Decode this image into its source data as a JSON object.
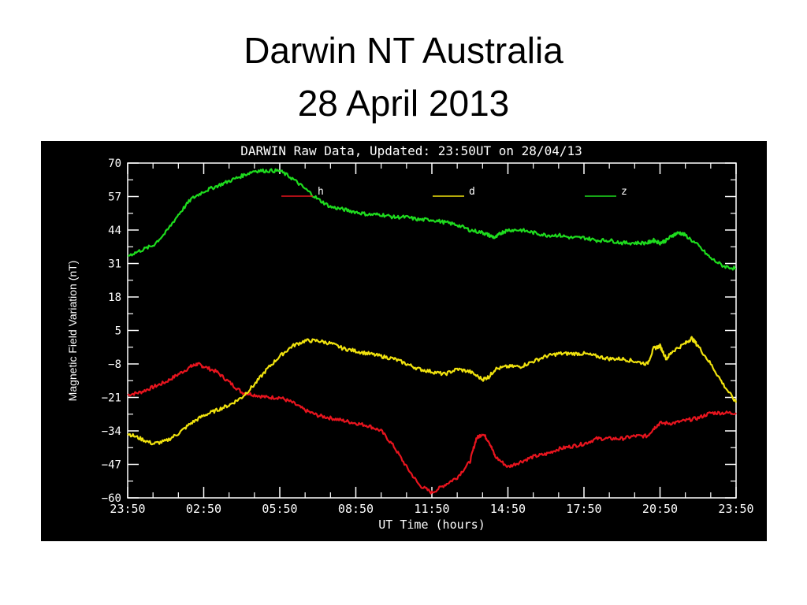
{
  "slide": {
    "title_line1": "Darwin NT Australia",
    "title_line2": "28 April 2013"
  },
  "chart_data": {
    "type": "line",
    "title": "DARWIN Raw Data, Updated: 23:50UT on 28/04/13",
    "xlabel": "UT Time (hours)",
    "ylabel": "Magnetic Field Variation (nT)",
    "x_ticks": [
      "23:50",
      "02:50",
      "05:50",
      "08:50",
      "11:50",
      "14:50",
      "17:50",
      "20:50",
      "23:50"
    ],
    "y_ticks": [
      70,
      57,
      44,
      31,
      18,
      5,
      -8,
      -21,
      -34,
      -47,
      -60
    ],
    "x_unit": "hours since 23:50 UT",
    "xlim": [
      0,
      24
    ],
    "ylim": [
      -60,
      70
    ],
    "background": "#000000",
    "axis_color": "#ffffff",
    "series": [
      {
        "name": "h",
        "color": "#e8141e",
        "points": [
          [
            0,
            -20
          ],
          [
            0.5,
            -19
          ],
          [
            1.0,
            -17
          ],
          [
            1.5,
            -15
          ],
          [
            2.0,
            -12
          ],
          [
            2.5,
            -9
          ],
          [
            2.75,
            -8
          ],
          [
            3.0,
            -9
          ],
          [
            3.5,
            -11
          ],
          [
            4.0,
            -15
          ],
          [
            4.5,
            -19
          ],
          [
            5.0,
            -20
          ],
          [
            5.5,
            -21
          ],
          [
            6.0,
            -21
          ],
          [
            6.5,
            -23
          ],
          [
            7.0,
            -26
          ],
          [
            7.5,
            -28
          ],
          [
            8.0,
            -29
          ],
          [
            8.5,
            -30
          ],
          [
            9.0,
            -31
          ],
          [
            9.5,
            -32
          ],
          [
            10.0,
            -34
          ],
          [
            10.5,
            -40
          ],
          [
            11.0,
            -48
          ],
          [
            11.5,
            -55
          ],
          [
            12.0,
            -58
          ],
          [
            12.5,
            -55
          ],
          [
            13.0,
            -52
          ],
          [
            13.5,
            -46
          ],
          [
            13.75,
            -37
          ],
          [
            14.0,
            -35
          ],
          [
            14.25,
            -38
          ],
          [
            14.5,
            -44
          ],
          [
            15.0,
            -48
          ],
          [
            15.5,
            -46
          ],
          [
            16.0,
            -44
          ],
          [
            16.5,
            -43
          ],
          [
            17.0,
            -41
          ],
          [
            17.5,
            -40
          ],
          [
            18.0,
            -39
          ],
          [
            18.5,
            -37
          ],
          [
            19.0,
            -37
          ],
          [
            19.5,
            -37
          ],
          [
            20.0,
            -36
          ],
          [
            20.5,
            -36
          ],
          [
            20.75,
            -33
          ],
          [
            21.0,
            -31
          ],
          [
            21.5,
            -31
          ],
          [
            22.0,
            -30
          ],
          [
            22.5,
            -29
          ],
          [
            23.0,
            -27
          ],
          [
            23.5,
            -27
          ],
          [
            24.0,
            -27
          ]
        ]
      },
      {
        "name": "d",
        "color": "#f0e20e",
        "points": [
          [
            0,
            -35
          ],
          [
            0.5,
            -37
          ],
          [
            1.0,
            -39
          ],
          [
            1.5,
            -38
          ],
          [
            2.0,
            -35
          ],
          [
            2.5,
            -31
          ],
          [
            3.0,
            -28
          ],
          [
            3.5,
            -26
          ],
          [
            4.0,
            -24
          ],
          [
            4.5,
            -21
          ],
          [
            5.0,
            -16
          ],
          [
            5.5,
            -10
          ],
          [
            6.0,
            -5
          ],
          [
            6.5,
            -1
          ],
          [
            7.0,
            1
          ],
          [
            7.5,
            1
          ],
          [
            8.0,
            0
          ],
          [
            8.5,
            -2
          ],
          [
            9.0,
            -3
          ],
          [
            9.5,
            -4
          ],
          [
            10.0,
            -5
          ],
          [
            10.5,
            -6
          ],
          [
            11.0,
            -8
          ],
          [
            11.5,
            -10
          ],
          [
            12.0,
            -11
          ],
          [
            12.5,
            -12
          ],
          [
            13.0,
            -10
          ],
          [
            13.5,
            -11
          ],
          [
            14.0,
            -14
          ],
          [
            14.25,
            -13
          ],
          [
            14.5,
            -10
          ],
          [
            15.0,
            -9
          ],
          [
            15.5,
            -9
          ],
          [
            16.0,
            -7
          ],
          [
            16.5,
            -5
          ],
          [
            17.0,
            -4
          ],
          [
            17.5,
            -4
          ],
          [
            18.0,
            -4
          ],
          [
            18.5,
            -5
          ],
          [
            19.0,
            -6
          ],
          [
            19.5,
            -6
          ],
          [
            20.0,
            -7
          ],
          [
            20.5,
            -8
          ],
          [
            20.75,
            -2
          ],
          [
            21.0,
            -1
          ],
          [
            21.25,
            -6
          ],
          [
            21.5,
            -3
          ],
          [
            22.0,
            0
          ],
          [
            22.25,
            2
          ],
          [
            22.5,
            -1
          ],
          [
            23.0,
            -8
          ],
          [
            23.5,
            -16
          ],
          [
            24.0,
            -23
          ]
        ]
      },
      {
        "name": "z",
        "color": "#1edc1e",
        "points": [
          [
            0,
            34
          ],
          [
            0.5,
            36
          ],
          [
            1.0,
            38
          ],
          [
            1.5,
            43
          ],
          [
            2.0,
            50
          ],
          [
            2.5,
            56
          ],
          [
            3.0,
            59
          ],
          [
            3.5,
            61
          ],
          [
            4.0,
            63
          ],
          [
            4.5,
            65
          ],
          [
            5.0,
            67
          ],
          [
            5.5,
            67
          ],
          [
            6.0,
            67
          ],
          [
            6.5,
            64
          ],
          [
            7.0,
            60
          ],
          [
            7.5,
            56
          ],
          [
            8.0,
            53
          ],
          [
            8.5,
            52
          ],
          [
            9.0,
            51
          ],
          [
            9.5,
            50
          ],
          [
            10.0,
            50
          ],
          [
            10.5,
            49
          ],
          [
            11.0,
            49
          ],
          [
            11.5,
            48
          ],
          [
            12.0,
            48
          ],
          [
            12.5,
            47
          ],
          [
            13.0,
            46
          ],
          [
            13.5,
            44
          ],
          [
            14.0,
            43
          ],
          [
            14.25,
            42
          ],
          [
            14.5,
            41
          ],
          [
            14.75,
            43
          ],
          [
            15.0,
            44
          ],
          [
            15.5,
            44
          ],
          [
            16.0,
            43
          ],
          [
            16.5,
            42
          ],
          [
            17.0,
            42
          ],
          [
            17.5,
            41
          ],
          [
            18.0,
            41
          ],
          [
            18.5,
            40
          ],
          [
            19.0,
            40
          ],
          [
            19.5,
            39
          ],
          [
            20.0,
            39
          ],
          [
            20.5,
            39
          ],
          [
            20.75,
            40
          ],
          [
            21.0,
            39
          ],
          [
            21.25,
            40
          ],
          [
            21.5,
            42
          ],
          [
            21.75,
            43
          ],
          [
            22.0,
            42
          ],
          [
            22.5,
            38
          ],
          [
            23.0,
            33
          ],
          [
            23.5,
            30
          ],
          [
            24.0,
            29
          ]
        ]
      }
    ]
  }
}
